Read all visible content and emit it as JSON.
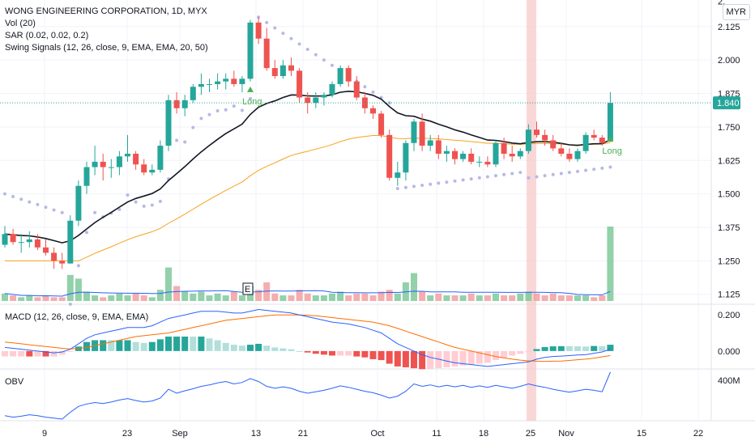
{
  "header": {
    "title": "WONG ENGINEERING CORPORATION, 1D, MYX",
    "vol_label": "Vol (20)",
    "sar_label": "SAR (0.02, 0.02, 0.2)",
    "swing_label": "Swing Signals (12, 26, close, 9, EMA, EMA, 20, 50)",
    "currency": "MYR"
  },
  "macd_label": "MACD (12, 26, close, 9, EMA, EMA)",
  "obv_label": "OBV",
  "price_axis": [
    "2.",
    "2.125",
    "2.000",
    "1.875",
    "1.750",
    "1.625",
    "1.500",
    "1.375",
    "1.250",
    "1.125"
  ],
  "current_price": "1.840",
  "macd_axis": [
    "0.200",
    "0.000"
  ],
  "obv_axis": [
    "400M"
  ],
  "date_axis": [
    "9",
    "23",
    "Sep",
    "13",
    "21",
    "Oct",
    "11",
    "18",
    "25",
    "Nov",
    "15",
    "22"
  ],
  "signals": [
    "Long",
    "Long"
  ],
  "earnings_marker": "E",
  "colors": {
    "up": "#26a69a",
    "down": "#ef5350",
    "ema_fast": "#131722",
    "ema_slow": "#f7a21b",
    "sar": "#b8b8e6",
    "macd": "#2962ff",
    "signal": "#ff6d00",
    "obv": "#2962ff",
    "vol_ma": "#2962ff"
  },
  "chart_data": {
    "type": "candlestick",
    "title": "WONG ENGINEERING CORPORATION, 1D, MYX",
    "ylim": [
      1.1,
      2.2
    ],
    "candles": [
      [
        1.31,
        1.38,
        1.3,
        1.35
      ],
      [
        1.35,
        1.37,
        1.31,
        1.32
      ],
      [
        1.32,
        1.35,
        1.28,
        1.32
      ],
      [
        1.32,
        1.36,
        1.3,
        1.33
      ],
      [
        1.33,
        1.35,
        1.29,
        1.3
      ],
      [
        1.3,
        1.33,
        1.27,
        1.28
      ],
      [
        1.28,
        1.3,
        1.22,
        1.25
      ],
      [
        1.25,
        1.28,
        1.22,
        1.24
      ],
      [
        1.24,
        1.42,
        1.24,
        1.4
      ],
      [
        1.4,
        1.55,
        1.38,
        1.53
      ],
      [
        1.53,
        1.62,
        1.5,
        1.6
      ],
      [
        1.6,
        1.68,
        1.57,
        1.62
      ],
      [
        1.62,
        1.65,
        1.55,
        1.6
      ],
      [
        1.6,
        1.63,
        1.56,
        1.6
      ],
      [
        1.6,
        1.66,
        1.57,
        1.64
      ],
      [
        1.64,
        1.72,
        1.62,
        1.65
      ],
      [
        1.65,
        1.66,
        1.59,
        1.61
      ],
      [
        1.61,
        1.63,
        1.57,
        1.58
      ],
      [
        1.58,
        1.61,
        1.57,
        1.59
      ],
      [
        1.59,
        1.7,
        1.58,
        1.68
      ],
      [
        1.68,
        1.87,
        1.66,
        1.85
      ],
      [
        1.85,
        1.88,
        1.8,
        1.82
      ],
      [
        1.82,
        1.87,
        1.79,
        1.85
      ],
      [
        1.85,
        1.91,
        1.84,
        1.9
      ],
      [
        1.9,
        1.95,
        1.87,
        1.91
      ],
      [
        1.91,
        1.93,
        1.88,
        1.91
      ],
      [
        1.91,
        1.95,
        1.89,
        1.92
      ],
      [
        1.92,
        1.95,
        1.89,
        1.93
      ],
      [
        1.93,
        1.96,
        1.9,
        1.91
      ],
      [
        1.91,
        1.94,
        1.88,
        1.93
      ],
      [
        1.93,
        2.15,
        1.92,
        2.14
      ],
      [
        2.14,
        2.16,
        2.06,
        2.08
      ],
      [
        2.08,
        2.12,
        1.96,
        1.97
      ],
      [
        1.97,
        2.0,
        1.93,
        1.94
      ],
      [
        1.94,
        2.0,
        1.93,
        1.98
      ],
      [
        1.98,
        2.01,
        1.94,
        1.96
      ],
      [
        1.96,
        1.97,
        1.84,
        1.86
      ],
      [
        1.86,
        1.88,
        1.8,
        1.84
      ],
      [
        1.84,
        1.88,
        1.82,
        1.86
      ],
      [
        1.86,
        1.88,
        1.83,
        1.87
      ],
      [
        1.87,
        1.92,
        1.86,
        1.91
      ],
      [
        1.91,
        1.98,
        1.9,
        1.97
      ],
      [
        1.97,
        1.98,
        1.9,
        1.92
      ],
      [
        1.92,
        1.94,
        1.85,
        1.86
      ],
      [
        1.86,
        1.88,
        1.8,
        1.82
      ],
      [
        1.82,
        1.83,
        1.78,
        1.8
      ],
      [
        1.8,
        1.81,
        1.71,
        1.72
      ],
      [
        1.72,
        1.74,
        1.55,
        1.56
      ],
      [
        1.56,
        1.62,
        1.53,
        1.58
      ],
      [
        1.58,
        1.7,
        1.55,
        1.69
      ],
      [
        1.69,
        1.78,
        1.66,
        1.77
      ],
      [
        1.77,
        1.8,
        1.66,
        1.68
      ],
      [
        1.68,
        1.72,
        1.66,
        1.7
      ],
      [
        1.7,
        1.72,
        1.63,
        1.65
      ],
      [
        1.65,
        1.68,
        1.62,
        1.66
      ],
      [
        1.66,
        1.67,
        1.61,
        1.63
      ],
      [
        1.63,
        1.66,
        1.62,
        1.65
      ],
      [
        1.65,
        1.67,
        1.61,
        1.62
      ],
      [
        1.62,
        1.64,
        1.6,
        1.62
      ],
      [
        1.62,
        1.64,
        1.6,
        1.61
      ],
      [
        1.61,
        1.7,
        1.6,
        1.69
      ],
      [
        1.69,
        1.71,
        1.63,
        1.65
      ],
      [
        1.65,
        1.68,
        1.62,
        1.64
      ],
      [
        1.64,
        1.67,
        1.63,
        1.66
      ],
      [
        1.66,
        1.76,
        1.65,
        1.74
      ],
      [
        1.74,
        1.77,
        1.71,
        1.72
      ],
      [
        1.72,
        1.74,
        1.68,
        1.7
      ],
      [
        1.7,
        1.72,
        1.66,
        1.67
      ],
      [
        1.67,
        1.69,
        1.64,
        1.65
      ],
      [
        1.65,
        1.67,
        1.62,
        1.63
      ],
      [
        1.63,
        1.67,
        1.62,
        1.66
      ],
      [
        1.66,
        1.73,
        1.65,
        1.72
      ],
      [
        1.72,
        1.74,
        1.7,
        1.71
      ],
      [
        1.71,
        1.72,
        1.68,
        1.69
      ],
      [
        1.7,
        1.88,
        1.7,
        1.84
      ]
    ],
    "volume": [
      4,
      3,
      2,
      3,
      2,
      3,
      2,
      2,
      14,
      12,
      5,
      3,
      2,
      3,
      4,
      3,
      4,
      3,
      2,
      6,
      18,
      8,
      5,
      4,
      5,
      3,
      4,
      3,
      5,
      3,
      8,
      6,
      10,
      4,
      3,
      3,
      6,
      4,
      3,
      3,
      4,
      5,
      3,
      4,
      4,
      3,
      5,
      6,
      4,
      10,
      15,
      5,
      3,
      4,
      3,
      3,
      3,
      4,
      3,
      3,
      4,
      3,
      3,
      4,
      5,
      4,
      3,
      4,
      3,
      3,
      3,
      3,
      2,
      3,
      40
    ],
    "macd": [
      0.02,
      0.015,
      0.01,
      0.005,
      0.0,
      -0.005,
      -0.01,
      -0.005,
      0.01,
      0.04,
      0.07,
      0.09,
      0.1,
      0.11,
      0.12,
      0.13,
      0.13,
      0.13,
      0.14,
      0.16,
      0.18,
      0.19,
      0.2,
      0.21,
      0.22,
      0.22,
      0.22,
      0.215,
      0.21,
      0.21,
      0.22,
      0.23,
      0.225,
      0.22,
      0.215,
      0.21,
      0.2,
      0.19,
      0.18,
      0.17,
      0.16,
      0.155,
      0.15,
      0.14,
      0.13,
      0.115,
      0.1,
      0.07,
      0.04,
      0.02,
      0.0,
      -0.02,
      -0.035,
      -0.045,
      -0.055,
      -0.065,
      -0.07,
      -0.075,
      -0.08,
      -0.085,
      -0.08,
      -0.075,
      -0.07,
      -0.065,
      -0.06,
      -0.045,
      -0.035,
      -0.03,
      -0.028,
      -0.025,
      -0.022,
      -0.02,
      -0.012,
      -0.005,
      0.01
    ],
    "signal": [
      0.05,
      0.045,
      0.04,
      0.035,
      0.03,
      0.025,
      0.02,
      0.015,
      0.012,
      0.015,
      0.02,
      0.03,
      0.04,
      0.05,
      0.06,
      0.07,
      0.08,
      0.085,
      0.09,
      0.095,
      0.1,
      0.11,
      0.12,
      0.13,
      0.14,
      0.15,
      0.16,
      0.17,
      0.175,
      0.18,
      0.185,
      0.19,
      0.195,
      0.2,
      0.2,
      0.2,
      0.2,
      0.198,
      0.195,
      0.19,
      0.185,
      0.18,
      0.175,
      0.17,
      0.165,
      0.16,
      0.15,
      0.14,
      0.125,
      0.11,
      0.095,
      0.08,
      0.065,
      0.05,
      0.035,
      0.02,
      0.01,
      0.0,
      -0.01,
      -0.02,
      -0.03,
      -0.038,
      -0.045,
      -0.05,
      -0.054,
      -0.056,
      -0.057,
      -0.056,
      -0.055,
      -0.052,
      -0.048,
      -0.045,
      -0.04,
      -0.032,
      -0.025
    ],
    "obv_ylim": [
      0,
      500
    ]
  }
}
